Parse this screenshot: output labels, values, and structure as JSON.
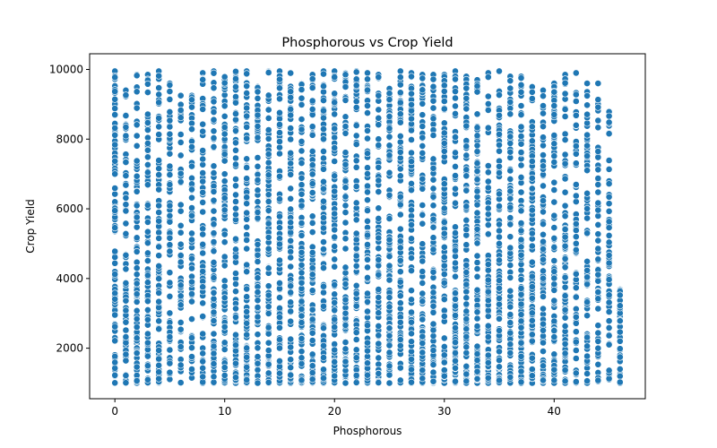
{
  "chart_data": {
    "type": "scatter",
    "title": "Phosphorous vs Crop Yield",
    "xlabel": "Phosphorous",
    "ylabel": "Crop Yield",
    "xlim": [
      -2.3,
      48.3
    ],
    "ylim": [
      550,
      10450
    ],
    "xticks": [
      0,
      10,
      20,
      30,
      40
    ],
    "yticks": [
      2000,
      4000,
      6000,
      8000,
      10000
    ],
    "xtick_labels": [
      "0",
      "10",
      "20",
      "30",
      "40"
    ],
    "ytick_labels": [
      "2000",
      "4000",
      "6000",
      "8000",
      "10000"
    ],
    "grid": false,
    "marker_color": "#1f77b4",
    "series": [
      {
        "x_values": [
          0,
          1,
          2,
          3,
          4,
          5,
          6,
          7,
          8,
          9,
          10,
          11,
          12,
          13,
          14,
          15,
          16,
          17,
          18,
          19,
          20,
          21,
          22,
          23,
          24,
          25,
          26,
          27,
          28,
          29,
          30,
          31,
          32,
          33,
          34,
          35,
          36,
          37,
          38,
          39,
          40,
          41,
          42,
          43,
          44,
          45,
          46
        ],
        "y_min": [
          1000,
          1000,
          1000,
          1000,
          1000,
          1100,
          1000,
          1150,
          1000,
          1000,
          1000,
          1000,
          1000,
          1000,
          1000,
          1000,
          1000,
          1000,
          1000,
          1000,
          1000,
          1000,
          1000,
          1000,
          1000,
          1000,
          1000,
          1000,
          1000,
          1000,
          1000,
          1000,
          1000,
          1000,
          1000,
          1000,
          1000,
          1000,
          1000,
          1000,
          1000,
          1000,
          1000,
          1000,
          1050,
          1100,
          1000
        ],
        "y_max": [
          9950,
          9400,
          9850,
          9850,
          9950,
          9600,
          9250,
          9250,
          9900,
          9950,
          9800,
          9950,
          9950,
          9500,
          9950,
          9950,
          9900,
          9600,
          9850,
          9950,
          9950,
          9900,
          9950,
          9900,
          9850,
          9450,
          9950,
          9900,
          9850,
          9850,
          9850,
          9950,
          9800,
          9700,
          9900,
          9950,
          9800,
          9800,
          9500,
          9400,
          9600,
          9850,
          9900,
          9600,
          9600,
          8800,
          3700
        ],
        "density": [
          0.95,
          0.65,
          0.7,
          0.7,
          0.8,
          0.55,
          0.45,
          0.45,
          0.55,
          0.7,
          0.75,
          0.75,
          0.8,
          0.85,
          0.8,
          0.8,
          0.8,
          0.85,
          0.8,
          0.85,
          0.85,
          0.8,
          0.8,
          0.8,
          0.75,
          0.75,
          0.8,
          0.8,
          0.8,
          0.75,
          0.75,
          0.8,
          0.8,
          0.8,
          0.75,
          0.75,
          0.75,
          0.8,
          0.75,
          0.7,
          0.7,
          0.65,
          0.6,
          0.55,
          0.45,
          0.35,
          0.2
        ]
      }
    ]
  }
}
